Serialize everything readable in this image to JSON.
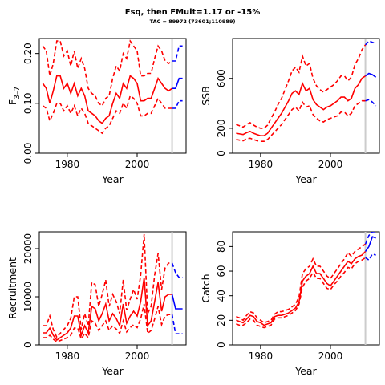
{
  "figure": {
    "title": "Fsq, then FMult=1.17 or -15%",
    "subtitle": "TAC = 89972 (73601;110989)"
  },
  "colors": {
    "history": "#ff0000",
    "projection": "#0000ff",
    "cutoff": "#cccccc"
  },
  "chart_data": [
    {
      "type": "line",
      "id": "fbar",
      "xlabel": "Year",
      "ylabel_main": "F",
      "ylabel_sub": "3–7",
      "xlim": [
        1972,
        2014
      ],
      "ylim": [
        0,
        0.23
      ],
      "xticks": [
        1980,
        2000
      ],
      "yticks": [
        0.0,
        0.1,
        0.2
      ],
      "ytick_labels": [
        "0.00",
        "0.10",
        "0.20"
      ],
      "cutoff_year": 2010,
      "history": {
        "x": [
          1973,
          1974,
          1975,
          1976,
          1977,
          1978,
          1979,
          1980,
          1981,
          1982,
          1983,
          1984,
          1985,
          1986,
          1987,
          1988,
          1989,
          1990,
          1991,
          1992,
          1993,
          1994,
          1995,
          1996,
          1997,
          1998,
          1999,
          2000,
          2001,
          2002,
          2003,
          2004,
          2005,
          2006,
          2007,
          2008,
          2009,
          2010
        ],
        "median": [
          0.14,
          0.13,
          0.1,
          0.125,
          0.155,
          0.155,
          0.13,
          0.14,
          0.12,
          0.14,
          0.115,
          0.13,
          0.115,
          0.085,
          0.08,
          0.075,
          0.065,
          0.06,
          0.07,
          0.075,
          0.1,
          0.12,
          0.11,
          0.14,
          0.13,
          0.155,
          0.15,
          0.14,
          0.105,
          0.105,
          0.11,
          0.11,
          0.13,
          0.15,
          0.14,
          0.13,
          0.125,
          0.13
        ],
        "lower": [
          0.095,
          0.09,
          0.065,
          0.08,
          0.1,
          0.1,
          0.085,
          0.095,
          0.08,
          0.095,
          0.075,
          0.09,
          0.08,
          0.06,
          0.055,
          0.05,
          0.045,
          0.04,
          0.05,
          0.055,
          0.07,
          0.085,
          0.08,
          0.1,
          0.09,
          0.115,
          0.11,
          0.1,
          0.075,
          0.075,
          0.08,
          0.08,
          0.095,
          0.11,
          0.1,
          0.09,
          0.09,
          0.09
        ],
        "upper": [
          0.215,
          0.205,
          0.155,
          0.18,
          0.225,
          0.225,
          0.195,
          0.205,
          0.175,
          0.205,
          0.17,
          0.19,
          0.17,
          0.13,
          0.12,
          0.115,
          0.1,
          0.095,
          0.11,
          0.115,
          0.15,
          0.175,
          0.165,
          0.2,
          0.19,
          0.225,
          0.215,
          0.205,
          0.155,
          0.155,
          0.16,
          0.16,
          0.19,
          0.215,
          0.205,
          0.185,
          0.18,
          0.185
        ]
      },
      "projection": {
        "x": [
          2010,
          2011,
          2012,
          2013
        ],
        "median": [
          0.13,
          0.13,
          0.15,
          0.15
        ],
        "lower": [
          0.09,
          0.09,
          0.105,
          0.105
        ],
        "upper": [
          0.185,
          0.185,
          0.215,
          0.215
        ]
      }
    },
    {
      "type": "line",
      "id": "ssb",
      "xlabel": "Year",
      "ylabel_main": "SSB",
      "xlim": [
        1972,
        2014
      ],
      "ylim": [
        0,
        920
      ],
      "xticks": [
        1980,
        2000
      ],
      "yticks": [
        0,
        200,
        600
      ],
      "ytick_labels": [
        "0",
        "200",
        "600"
      ],
      "cutoff_year": 2010,
      "history": {
        "x": [
          1973,
          1974,
          1975,
          1976,
          1977,
          1978,
          1979,
          1980,
          1981,
          1982,
          1983,
          1984,
          1985,
          1986,
          1987,
          1988,
          1989,
          1990,
          1991,
          1992,
          1993,
          1994,
          1995,
          1996,
          1997,
          1998,
          1999,
          2000,
          2001,
          2002,
          2003,
          2004,
          2005,
          2006,
          2007,
          2008,
          2009,
          2010
        ],
        "median": [
          160,
          155,
          150,
          165,
          175,
          160,
          150,
          140,
          140,
          160,
          200,
          240,
          280,
          320,
          370,
          420,
          480,
          500,
          470,
          560,
          500,
          520,
          430,
          390,
          370,
          350,
          370,
          380,
          400,
          420,
          450,
          450,
          420,
          440,
          520,
          550,
          600,
          620
        ],
        "lower": [
          110,
          105,
          100,
          115,
          120,
          110,
          100,
          95,
          95,
          110,
          140,
          170,
          200,
          230,
          270,
          310,
          350,
          370,
          340,
          410,
          370,
          380,
          310,
          280,
          260,
          250,
          270,
          280,
          290,
          300,
          330,
          330,
          300,
          320,
          380,
          400,
          420,
          420
        ],
        "upper": [
          230,
          220,
          210,
          230,
          245,
          225,
          210,
          200,
          200,
          225,
          280,
          330,
          390,
          440,
          510,
          580,
          660,
          690,
          650,
          780,
          700,
          720,
          600,
          540,
          510,
          490,
          510,
          530,
          550,
          580,
          620,
          620,
          580,
          610,
          710,
          760,
          830,
          870
        ]
      },
      "projection": {
        "x": [
          2010,
          2011,
          2012,
          2013
        ],
        "median": [
          620,
          640,
          630,
          610
        ],
        "lower": [
          420,
          430,
          410,
          380
        ],
        "upper": [
          870,
          900,
          890,
          880
        ]
      }
    },
    {
      "type": "line",
      "id": "recruitment",
      "xlabel": "Year",
      "ylabel_main": "Recruitment",
      "xlim": [
        1972,
        2014
      ],
      "ylim": [
        0,
        23500
      ],
      "xticks": [
        1980,
        2000
      ],
      "yticks": [
        0,
        10000,
        20000
      ],
      "ytick_labels": [
        "0",
        "10000",
        "20000"
      ],
      "cutoff_year": 2010,
      "history": {
        "x": [
          1973,
          1974,
          1975,
          1976,
          1977,
          1978,
          1979,
          1980,
          1981,
          1982,
          1983,
          1984,
          1985,
          1986,
          1987,
          1988,
          1989,
          1990,
          1991,
          1992,
          1993,
          1994,
          1995,
          1996,
          1997,
          1998,
          1999,
          2000,
          2001,
          2002,
          2003,
          2004,
          2005,
          2006,
          2007,
          2008,
          2009,
          2010
        ],
        "median": [
          2500,
          2500,
          3500,
          2000,
          1000,
          1500,
          2000,
          2500,
          3500,
          6000,
          6000,
          2000,
          4000,
          2500,
          8000,
          7500,
          5000,
          6500,
          8500,
          5000,
          6500,
          5500,
          4000,
          8500,
          4500,
          6000,
          7000,
          6000,
          9000,
          14000,
          4000,
          5000,
          9000,
          13000,
          7000,
          10000,
          10500,
          10500
        ],
        "lower": [
          1500,
          1500,
          2000,
          1200,
          600,
          900,
          1200,
          1500,
          2000,
          3500,
          3500,
          1200,
          2400,
          1500,
          5000,
          4500,
          3000,
          4000,
          5000,
          3000,
          4000,
          3300,
          2400,
          5000,
          2700,
          3600,
          4200,
          3600,
          5400,
          8500,
          2400,
          3000,
          5400,
          8000,
          4200,
          6000,
          6300,
          6300
        ],
        "upper": [
          4000,
          4000,
          6000,
          3200,
          1600,
          2400,
          3200,
          4000,
          5500,
          10000,
          10000,
          3200,
          6500,
          4000,
          13000,
          12500,
          8000,
          10500,
          13500,
          8000,
          10500,
          9000,
          6500,
          13500,
          7200,
          9500,
          11500,
          9500,
          14500,
          23000,
          6500,
          8000,
          14500,
          19000,
          11500,
          16000,
          17000,
          17000
        ]
      },
      "projection": {
        "x": [
          2010,
          2011,
          2012,
          2013
        ],
        "median": [
          10500,
          7500,
          7500,
          7500
        ],
        "lower": [
          6300,
          2300,
          2300,
          2300
        ],
        "upper": [
          17000,
          15000,
          14000,
          14000
        ]
      }
    },
    {
      "type": "line",
      "id": "catch",
      "xlabel": "Year",
      "ylabel_main": "Catch",
      "xlim": [
        1972,
        2014
      ],
      "ylim": [
        0,
        92
      ],
      "xticks": [
        1980,
        2000
      ],
      "yticks": [
        0,
        20,
        40,
        60,
        80
      ],
      "ytick_labels": [
        "0",
        "20",
        "40",
        "60",
        "80"
      ],
      "cutoff_year": 2010,
      "history": {
        "x": [
          1973,
          1974,
          1975,
          1976,
          1977,
          1978,
          1979,
          1980,
          1981,
          1982,
          1983,
          1984,
          1985,
          1986,
          1987,
          1988,
          1989,
          1990,
          1991,
          1992,
          1993,
          1994,
          1995,
          1996,
          1997,
          1998,
          1999,
          2000,
          2001,
          2002,
          2003,
          2004,
          2005,
          2006,
          2007,
          2008,
          2009,
          2010
        ],
        "median": [
          20,
          19,
          18,
          21,
          24,
          23,
          19,
          18,
          16,
          17,
          18,
          23,
          24,
          24,
          25,
          26,
          28,
          30,
          35,
          52,
          56,
          58,
          64,
          58,
          58,
          54,
          50,
          48,
          52,
          56,
          60,
          64,
          68,
          66,
          70,
          72,
          73,
          76
        ],
        "lower": [
          17,
          16,
          16,
          18,
          21,
          20,
          16,
          15,
          14,
          15,
          16,
          21,
          22,
          22,
          23,
          24,
          26,
          28,
          33,
          47,
          52,
          54,
          59,
          54,
          54,
          50,
          46,
          45,
          49,
          52,
          56,
          59,
          63,
          62,
          66,
          68,
          69,
          71
        ],
        "upper": [
          23,
          22,
          20,
          24,
          27,
          26,
          22,
          20,
          18,
          19,
          20,
          25,
          27,
          27,
          28,
          29,
          31,
          33,
          39,
          58,
          62,
          64,
          70,
          64,
          64,
          60,
          56,
          54,
          58,
          62,
          66,
          70,
          75,
          72,
          76,
          78,
          80,
          82
        ]
      },
      "projection": {
        "x": [
          2010,
          2011,
          2012,
          2013
        ],
        "median": [
          76,
          80,
          88,
          87
        ],
        "lower": [
          71,
          69,
          74,
          73
        ],
        "upper": [
          82,
          89,
          92,
          92
        ]
      }
    }
  ]
}
